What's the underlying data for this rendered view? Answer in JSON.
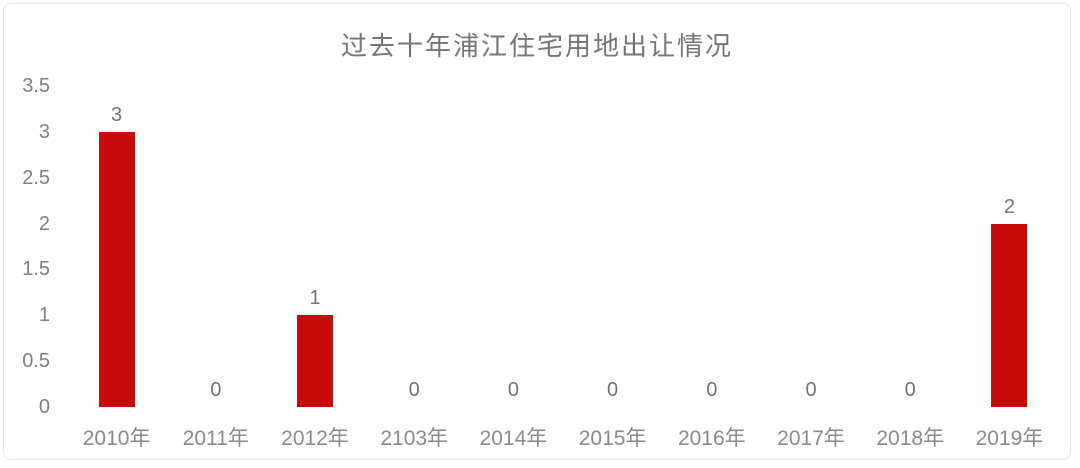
{
  "page": {
    "background_color": "#ffffff",
    "card_border_color": "#e6e6e6"
  },
  "chart_data": {
    "type": "bar",
    "title": "过去十年浦江住宅用地出让情况",
    "categories": [
      "2010年",
      "2011年",
      "2012年",
      "2103年",
      "2014年",
      "2015年",
      "2016年",
      "2017年",
      "2018年",
      "2019年"
    ],
    "values": [
      3,
      0,
      1,
      0,
      0,
      0,
      0,
      0,
      0,
      2
    ],
    "data_labels": [
      "3",
      "0",
      "1",
      "0",
      "0",
      "0",
      "0",
      "0",
      "0",
      "2"
    ],
    "yticks": [
      "3.5",
      "3",
      "2.5",
      "2",
      "1.5",
      "1",
      "0.5",
      "0"
    ],
    "ylim": [
      0,
      3.5
    ],
    "xlabel": "",
    "ylabel": "",
    "grid": "off",
    "legend": "none",
    "bar_color": "#c80c0c",
    "title_color": "#757575",
    "tick_label_color": "#7f7f7f",
    "data_label_color": "#737373"
  }
}
